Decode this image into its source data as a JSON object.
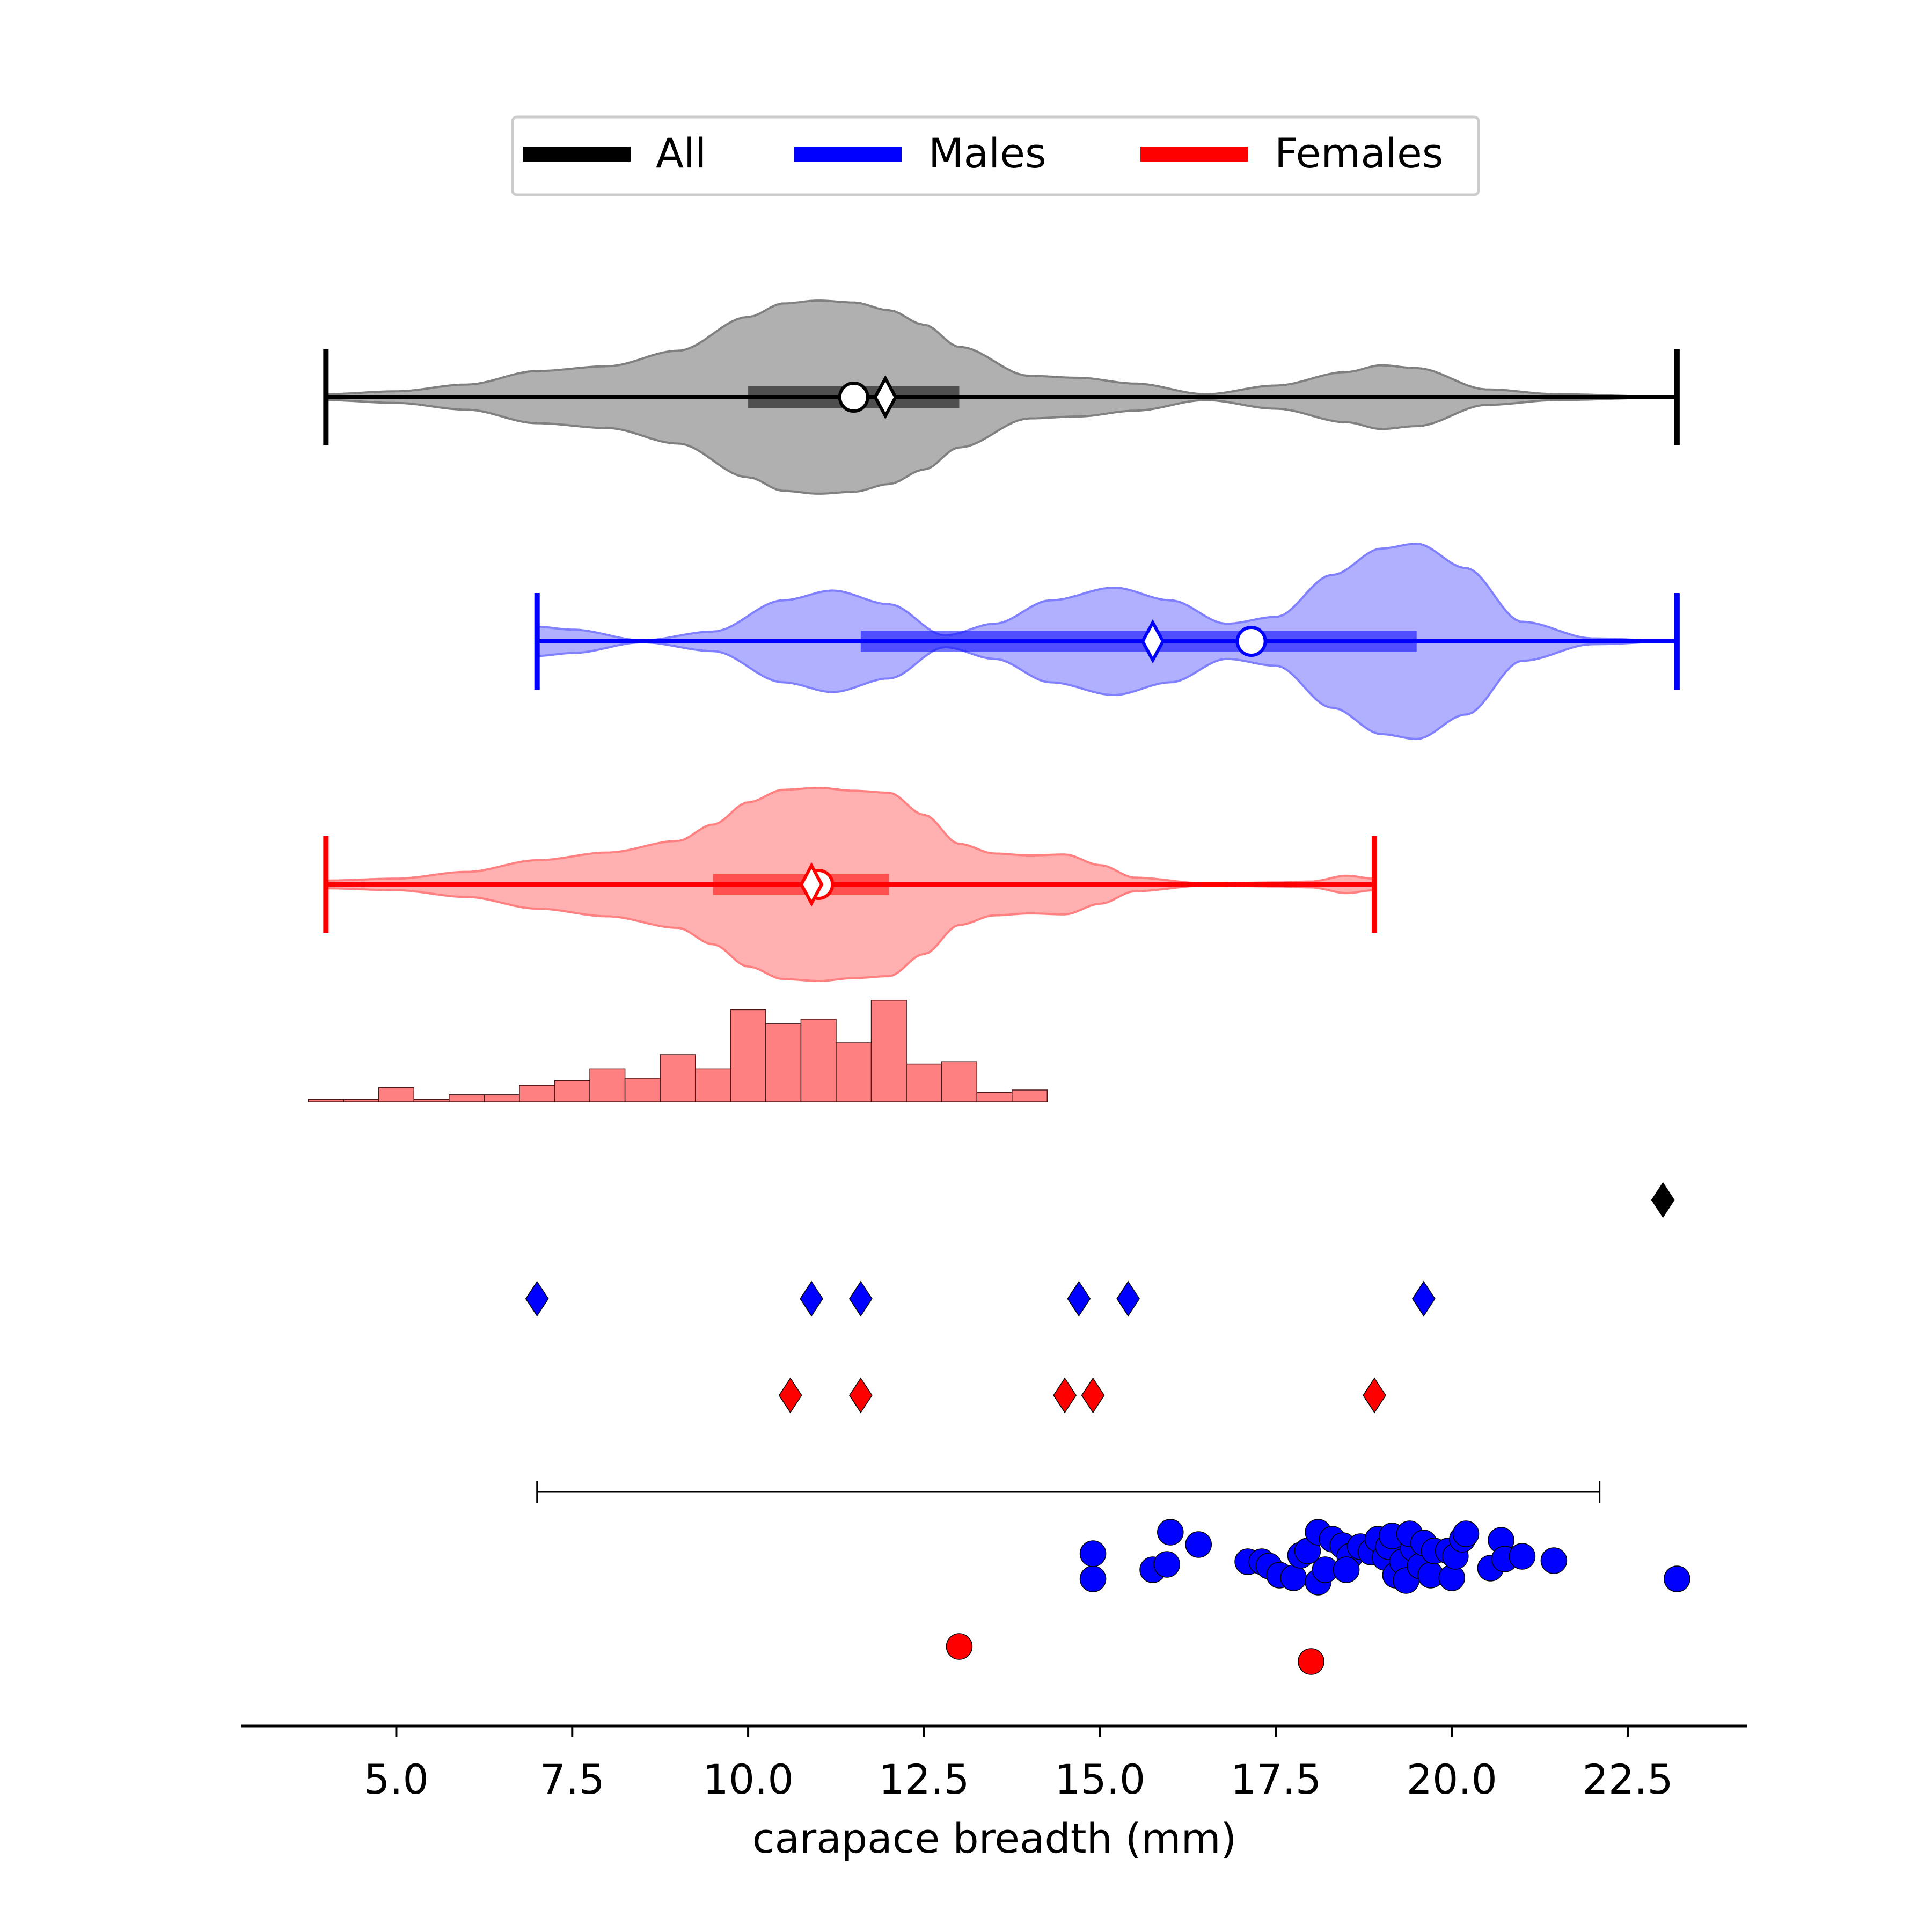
{
  "chart_data": {
    "type": "violin",
    "xlabel": "carapace breadth (mm)",
    "xlim": [
      2.8,
      24.2
    ],
    "xticks": [
      5.0,
      7.5,
      10.0,
      12.5,
      15.0,
      17.5,
      20.0,
      22.5
    ],
    "xtick_labels": [
      "5.0",
      "7.5",
      "10.0",
      "12.5",
      "15.0",
      "17.5",
      "20.0",
      "22.5"
    ],
    "legend": {
      "placement": "top-center",
      "entries": [
        {
          "label": "All",
          "color": "#000000"
        },
        {
          "label": "Males",
          "color": "#0000ff"
        },
        {
          "label": "Females",
          "color": "#ff0000"
        }
      ]
    },
    "violins": [
      {
        "group": "All",
        "color": "#000000",
        "fill": "#b0b0b0",
        "edge": "#808080",
        "min": 4.0,
        "max": 23.2,
        "q1": 10.0,
        "q3": 13.0,
        "mean": 11.5,
        "median": 11.95,
        "density_x": [
          4.0,
          5.0,
          6.0,
          7.0,
          8.0,
          9.0,
          10.0,
          10.5,
          11.0,
          11.5,
          12.0,
          12.5,
          13.0,
          14.0,
          14.7,
          15.5,
          16.5,
          17.5,
          18.5,
          19.0,
          19.5,
          20.5,
          21.5,
          23.2
        ],
        "density": [
          0.03,
          0.06,
          0.13,
          0.27,
          0.32,
          0.48,
          0.83,
          0.97,
          1.0,
          0.98,
          0.9,
          0.75,
          0.52,
          0.22,
          0.2,
          0.14,
          0.03,
          0.12,
          0.26,
          0.33,
          0.3,
          0.08,
          0.03,
          0.0
        ]
      },
      {
        "group": "Males",
        "color": "#0000ff",
        "fill": "#b0b0ff",
        "edge": "#8080ff",
        "min": 7.0,
        "max": 23.2,
        "q1": 11.6,
        "q3": 19.5,
        "mean": 17.15,
        "median": 15.75,
        "density_x": [
          7.0,
          7.5,
          8.5,
          9.5,
          10.5,
          11.2,
          12.0,
          12.8,
          13.5,
          14.3,
          15.2,
          16.0,
          16.8,
          17.5,
          18.3,
          19.0,
          19.5,
          20.2,
          21.0,
          22.0,
          23.2
        ],
        "density": [
          0.15,
          0.12,
          0.01,
          0.1,
          0.42,
          0.52,
          0.38,
          0.06,
          0.18,
          0.42,
          0.55,
          0.42,
          0.18,
          0.25,
          0.68,
          0.95,
          1.0,
          0.75,
          0.2,
          0.03,
          0.0
        ]
      },
      {
        "group": "Females",
        "color": "#ff0000",
        "fill": "#ffb0b0",
        "edge": "#ff8080",
        "min": 4.0,
        "max": 18.9,
        "q1": 9.5,
        "q3": 12.0,
        "mean": 11.0,
        "median": 10.9,
        "density_x": [
          4.0,
          5.0,
          6.0,
          7.0,
          8.0,
          9.0,
          9.5,
          10.0,
          10.5,
          11.0,
          11.5,
          12.0,
          12.5,
          13.0,
          13.5,
          14.0,
          14.5,
          15.0,
          15.5,
          16.5,
          17.5,
          18.0,
          18.5,
          18.9
        ],
        "density": [
          0.04,
          0.06,
          0.13,
          0.25,
          0.33,
          0.45,
          0.62,
          0.85,
          0.98,
          1.0,
          0.97,
          0.95,
          0.72,
          0.42,
          0.32,
          0.3,
          0.31,
          0.2,
          0.07,
          0.01,
          0.02,
          0.03,
          0.09,
          0.06
        ]
      }
    ],
    "histogram": {
      "color": "#ff8080",
      "edge": "#4a1a1a",
      "bin_start": 3.75,
      "bin_width": 0.5,
      "counts": [
        1,
        1,
        6,
        1,
        3,
        3,
        7,
        9,
        14,
        10,
        20,
        14,
        39,
        33,
        35,
        25,
        43,
        16,
        17,
        4,
        5
      ]
    },
    "diamond_markers": [
      {
        "group": "All",
        "color": "#000000",
        "x": [
          23.0
        ]
      },
      {
        "group": "Males",
        "color": "#0000ff",
        "x": [
          7.0,
          10.9,
          11.6,
          14.7,
          15.4,
          19.6
        ]
      },
      {
        "group": "Females",
        "color": "#ff0000",
        "x": [
          10.6,
          11.6,
          14.5,
          14.9,
          18.9
        ]
      }
    ],
    "range_bar": {
      "min": 7.0,
      "max": 22.1
    },
    "scatter": [
      {
        "group": "Males",
        "color": "#0000ff",
        "points": [
          [
            14.9,
            -0.02
          ],
          [
            14.9,
            0.45
          ],
          [
            15.75,
            0.15
          ],
          [
            15.95,
            0.25
          ],
          [
            16.0,
            0.85
          ],
          [
            16.4,
            0.62
          ],
          [
            17.1,
            0.3
          ],
          [
            17.3,
            0.3
          ],
          [
            17.4,
            0.22
          ],
          [
            17.55,
            0.05
          ],
          [
            17.75,
            0.0
          ],
          [
            17.85,
            0.42
          ],
          [
            17.95,
            0.5
          ],
          [
            18.1,
            -0.08
          ],
          [
            18.2,
            0.15
          ],
          [
            18.1,
            0.85
          ],
          [
            18.3,
            0.72
          ],
          [
            18.45,
            0.6
          ],
          [
            18.55,
            0.4
          ],
          [
            18.5,
            0.15
          ],
          [
            18.7,
            0.58
          ],
          [
            18.85,
            0.48
          ],
          [
            18.95,
            0.72
          ],
          [
            19.05,
            0.38
          ],
          [
            19.1,
            0.58
          ],
          [
            19.15,
            0.78
          ],
          [
            19.2,
            0.05
          ],
          [
            19.3,
            0.3
          ],
          [
            19.35,
            -0.05
          ],
          [
            19.45,
            0.55
          ],
          [
            19.4,
            0.82
          ],
          [
            19.55,
            0.22
          ],
          [
            19.6,
            0.65
          ],
          [
            19.7,
            0.05
          ],
          [
            19.75,
            0.5
          ],
          [
            19.95,
            0.5
          ],
          [
            20.0,
            0.0
          ],
          [
            20.05,
            0.4
          ],
          [
            20.15,
            0.72
          ],
          [
            20.2,
            0.82
          ],
          [
            20.55,
            0.18
          ],
          [
            20.7,
            0.7
          ],
          [
            20.75,
            0.35
          ],
          [
            21.0,
            0.4
          ],
          [
            21.45,
            0.32
          ],
          [
            23.2,
            -0.02
          ]
        ]
      },
      {
        "group": "Females",
        "color": "#ff0000",
        "points": [
          [
            13.0,
            0.0
          ],
          [
            18.0,
            -0.28
          ]
        ]
      }
    ]
  }
}
